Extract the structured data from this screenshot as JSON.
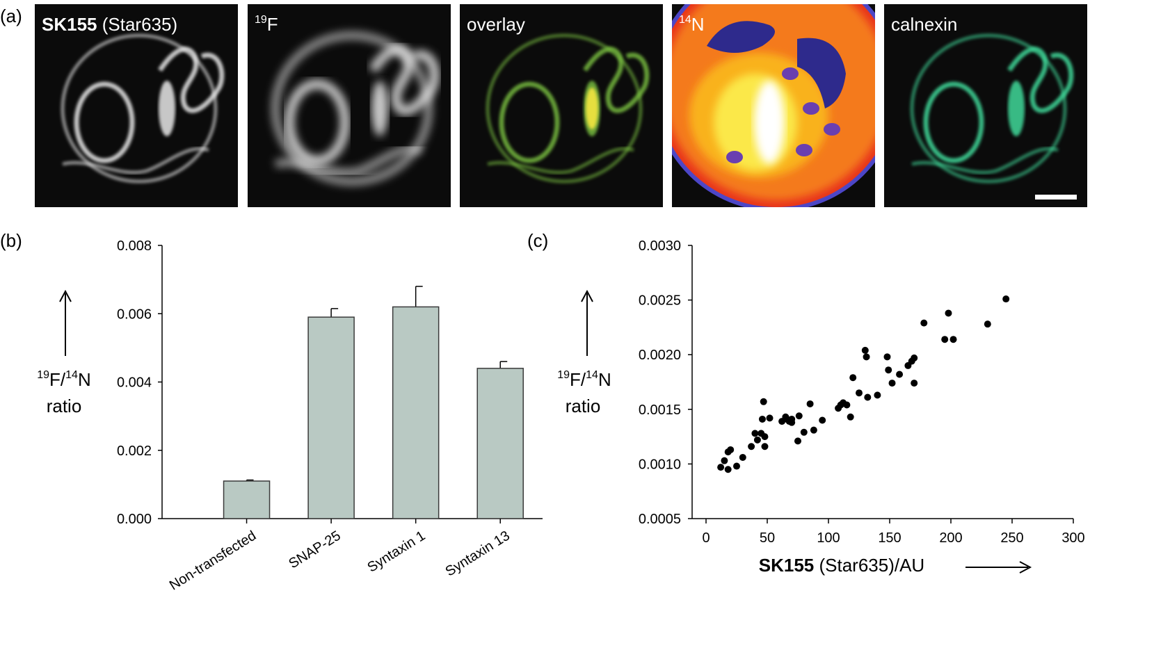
{
  "panel_labels": {
    "a": "(a)",
    "b": "(b)",
    "c": "(c)"
  },
  "micrographs": [
    {
      "bold": "SK155",
      "rest": " (Star635)",
      "sup": "",
      "colormap": "gray"
    },
    {
      "bold": "",
      "rest": "F",
      "sup": "19",
      "colormap": "gray"
    },
    {
      "bold": "",
      "rest": "overlay",
      "sup": "",
      "colormap": "overlay"
    },
    {
      "bold": "",
      "rest": "N",
      "sup": "14",
      "colormap": "heat"
    },
    {
      "bold": "",
      "rest": "calnexin",
      "sup": "",
      "colormap": "green"
    }
  ],
  "chart_data": [
    {
      "type": "bar",
      "categories": [
        "Non-transfected",
        "SNAP-25",
        "Syntaxin 1",
        "Syntaxin 13"
      ],
      "values": [
        0.0011,
        0.0059,
        0.0062,
        0.0044
      ],
      "errors": [
        3e-05,
        0.00025,
        0.0006,
        0.0002
      ],
      "ylim": [
        0,
        0.008
      ],
      "yticks": [
        "0.000",
        "0.002",
        "0.004",
        "0.006",
        "0.008"
      ],
      "ylabel": {
        "sup1": "19",
        "t1": "F/",
        "sup2": "14",
        "t2": "N",
        "line2": "ratio"
      },
      "bar_color": "#b9c9c3"
    },
    {
      "type": "scatter",
      "x": [
        12,
        15,
        18,
        18,
        20,
        25,
        30,
        37,
        40,
        42,
        45,
        46,
        47,
        48,
        48,
        52,
        62,
        65,
        66,
        68,
        70,
        70,
        75,
        76,
        80,
        85,
        88,
        95,
        108,
        110,
        112,
        115,
        118,
        120,
        125,
        130,
        131,
        132,
        140,
        148,
        149,
        152,
        158,
        165,
        168,
        170,
        170,
        178,
        195,
        198,
        202,
        230,
        245
      ],
      "y": [
        0.00097,
        0.00103,
        0.00095,
        0.00111,
        0.00113,
        0.00098,
        0.00106,
        0.00116,
        0.00128,
        0.00122,
        0.00128,
        0.00141,
        0.00157,
        0.00116,
        0.00125,
        0.00142,
        0.00139,
        0.00143,
        0.00141,
        0.00139,
        0.00141,
        0.00138,
        0.00121,
        0.00144,
        0.00129,
        0.00155,
        0.00131,
        0.0014,
        0.00151,
        0.00154,
        0.00156,
        0.00154,
        0.00143,
        0.00179,
        0.00165,
        0.00204,
        0.00198,
        0.00161,
        0.00163,
        0.00198,
        0.00186,
        0.00174,
        0.00182,
        0.0019,
        0.00194,
        0.00197,
        0.00174,
        0.00229,
        0.00214,
        0.00238,
        0.00214,
        0.00228,
        0.00251
      ],
      "xlim": [
        0,
        300
      ],
      "ylim": [
        0.0005,
        0.003
      ],
      "xticks": [
        "0",
        "50",
        "100",
        "150",
        "200",
        "250",
        "300"
      ],
      "yticks": [
        "0.0005",
        "0.0010",
        "0.0015",
        "0.0020",
        "0.0025",
        "0.0030"
      ],
      "ylabel": {
        "sup1": "19",
        "t1": "F/",
        "sup2": "14",
        "t2": "N",
        "line2": "ratio"
      },
      "xlabel": {
        "bold": "SK155",
        "rest": " (Star635)/AU"
      }
    }
  ]
}
